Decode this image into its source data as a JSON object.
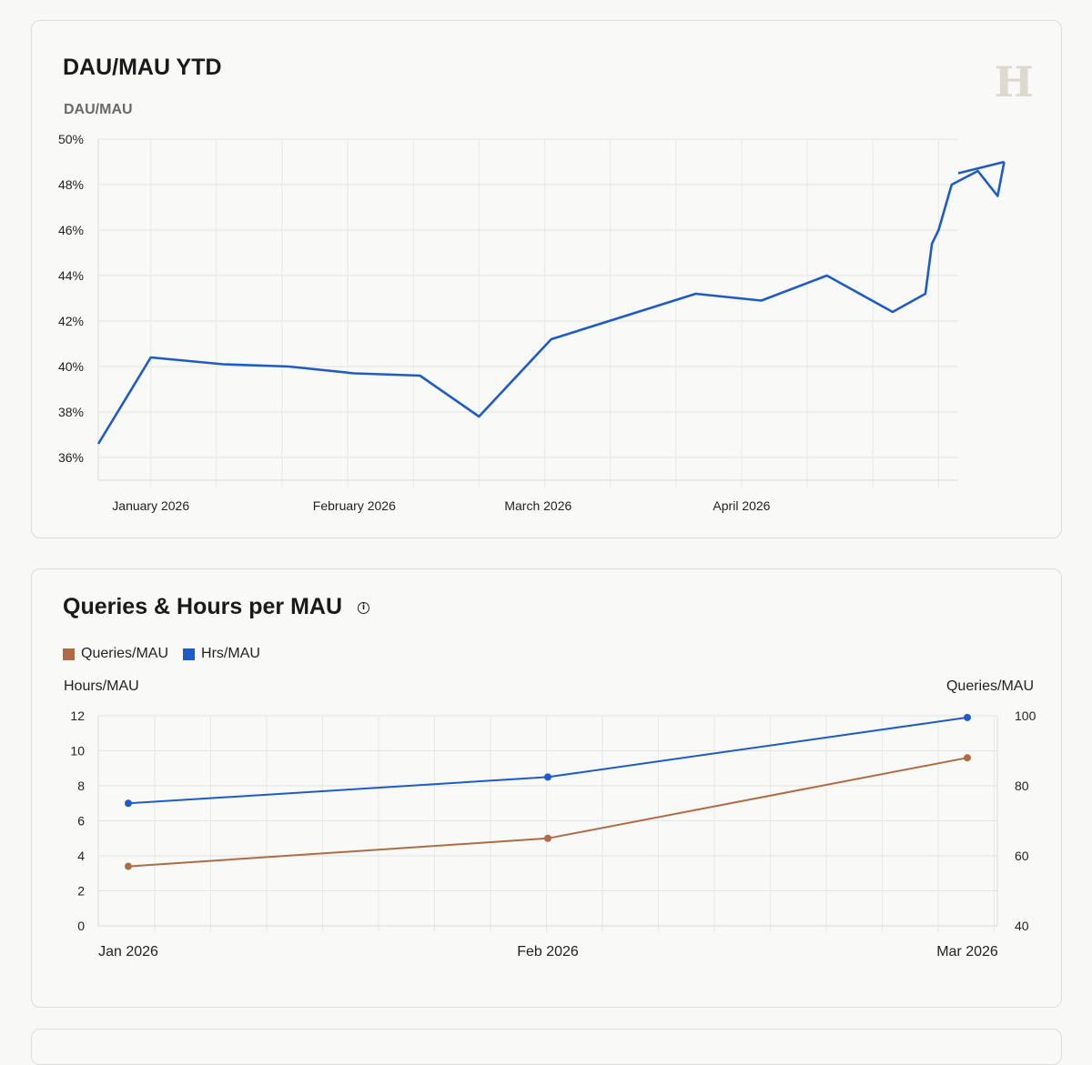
{
  "charts": {
    "dau_mau": {
      "title": "DAU/MAU YTD",
      "logo": "H",
      "axis_caption": "DAU/MAU",
      "x_ticks": [
        "January 2026",
        "February 2026",
        "March 2026",
        "April 2026"
      ]
    },
    "queries_hours": {
      "title": "Queries & Hours per MAU",
      "info_icon": "info-icon",
      "left_axis_caption": "Hours/MAU",
      "right_axis_caption": "Queries/MAU"
    }
  },
  "chart_data": [
    {
      "type": "line",
      "title": "DAU/MAU YTD",
      "ylabel": "DAU/MAU",
      "ylim": [
        35,
        50
      ],
      "y_ticks": [
        "36%",
        "38%",
        "40%",
        "42%",
        "44%",
        "46%",
        "48%",
        "50%"
      ],
      "x_ticks": [
        "January 2026",
        "February 2026",
        "March 2026",
        "April 2026"
      ],
      "xlim": [
        "2025-12-24",
        "2026-05-04"
      ],
      "grid": true,
      "series": [
        {
          "color": "#1f5bc6",
          "x": [
            "2025-12-24",
            "2026-01-01",
            "2026-01-12",
            "2026-01-22",
            "2026-02-01",
            "2026-02-11",
            "2026-02-20",
            "2026-03-03",
            "2026-03-14",
            "2026-03-25",
            "2026-04-04",
            "2026-04-14",
            "2026-04-24",
            "2026-04-29",
            "2026-04-30",
            "2026-05-01",
            "2026-05-03",
            "2026-05-07",
            "2026-05-10",
            "2026-05-11"
          ],
          "values": [
            36.6,
            40.4,
            40.1,
            40.0,
            39.7,
            39.6,
            37.8,
            41.2,
            42.2,
            43.2,
            42.9,
            44.0,
            42.4,
            43.2,
            45.4,
            46.0,
            48.0,
            48.6,
            47.5,
            49.0
          ]
        }
      ]
    },
    {
      "type": "line",
      "title": "Queries & Hours per MAU",
      "categories": [
        "Jan 2026",
        "Feb 2026",
        "Mar 2026"
      ],
      "legend": "top-left",
      "grid": true,
      "y_left": {
        "label": "Hours/MAU",
        "ylim": [
          0,
          12
        ],
        "ticks": [
          "0",
          "2",
          "4",
          "6",
          "8",
          "10",
          "12"
        ]
      },
      "y_right": {
        "label": "Queries/MAU",
        "ylim": [
          40,
          100
        ],
        "ticks": [
          "40",
          "60",
          "80",
          "100"
        ]
      },
      "series": [
        {
          "name": "Queries/MAU",
          "axis": "right",
          "color": "#b06b45",
          "values": [
            57,
            65,
            88
          ]
        },
        {
          "name": "Hrs/MAU",
          "axis": "left",
          "color": "#1f5bc6",
          "values": [
            7.0,
            8.5,
            11.9
          ]
        }
      ]
    }
  ]
}
